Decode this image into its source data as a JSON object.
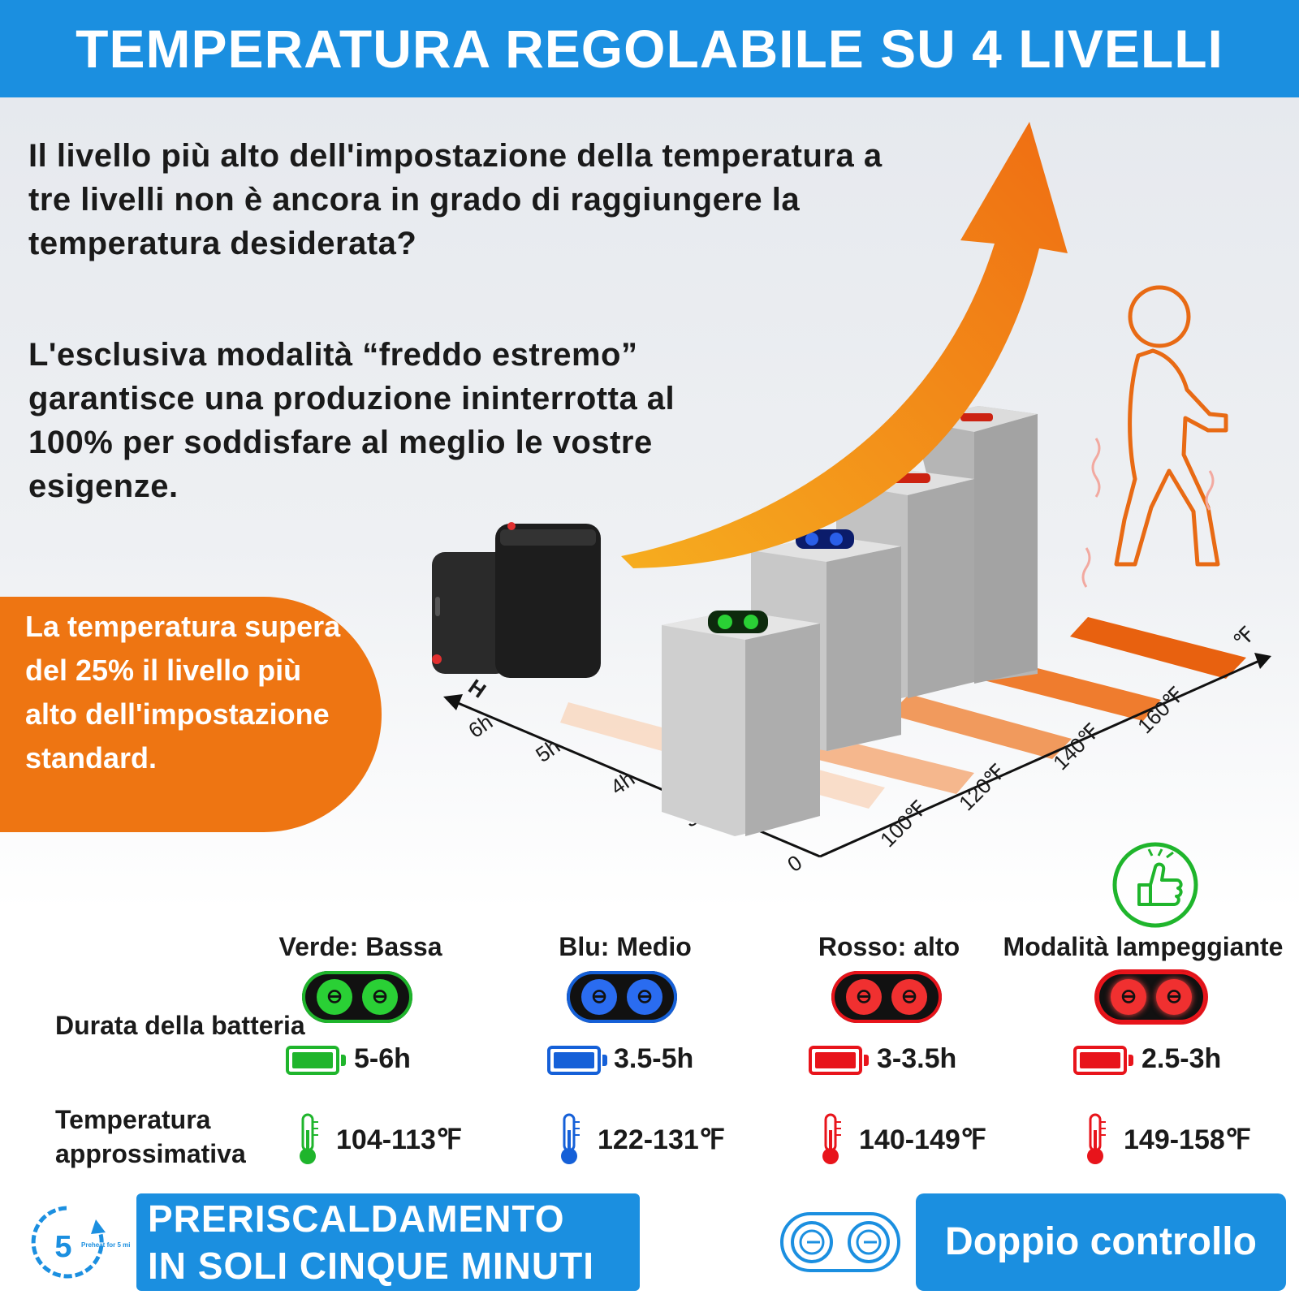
{
  "header": {
    "title": "TEMPERATURA REGOLABILE SU 4 LIVELLI"
  },
  "intro": {
    "paragraph1": "Il livello più alto dell'impostazione della temperatura a tre livelli non è ancora in grado di raggiungere la temperatura desiderata?",
    "paragraph2": "L'esclusiva modalità “freddo estremo” garantisce una produzione ininterrotta al 100% per soddisfare al meglio le vostre esigenze."
  },
  "callout": {
    "text": "La temperatura supera del 25% il livello più alto dell'impostazione standard."
  },
  "diagram": {
    "time_axis_label": "H",
    "time_ticks": [
      "3h",
      "4h",
      "5h",
      "6h"
    ],
    "temp_axis_label": "℉",
    "temp_ticks": [
      "100℉",
      "120℉",
      "140℉",
      "160℉"
    ],
    "origin_label": "0"
  },
  "levels": {
    "row_battery_label": "Durata della batteria",
    "row_temp_label": "Temperatura approssimativa",
    "items": [
      {
        "name": "Verde: Bassa",
        "battery": "5-6h",
        "temperature": "104-113℉",
        "color": "#1fb52c"
      },
      {
        "name": "Blu: Medio",
        "battery": "3.5-5h",
        "temperature": "122-131℉",
        "color": "#1560d8"
      },
      {
        "name": "Rosso: alto",
        "battery": "3-3.5h",
        "temperature": "140-149℉",
        "color": "#e8141b"
      },
      {
        "name": "Modalità lampeggiante",
        "battery": "2.5-3h",
        "temperature": "149-158℉",
        "color": "#e8141b"
      }
    ]
  },
  "preheat": {
    "timer_number": "5",
    "timer_caption": "Preheat for 5 minutes",
    "line1": "PRERISCALDAMENTO",
    "line2": "IN SOLI CINQUE MINUTI"
  },
  "dual_control": {
    "label": "Doppio controllo"
  },
  "icons": [
    "thumbs-up-icon",
    "power-button-icon",
    "battery-icon",
    "thermometer-icon",
    "timer-icon",
    "walking-person-icon",
    "power-bank-icon",
    "growth-arrow-icon"
  ]
}
